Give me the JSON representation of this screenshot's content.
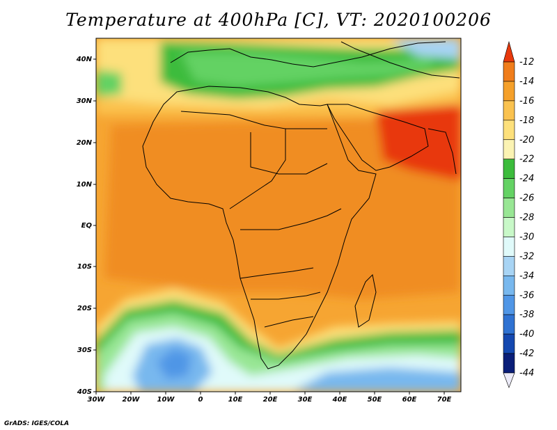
{
  "title": "Temperature at 400hPa [C], VT: 2020100206",
  "credit": "GrADS: IGES/COLA",
  "map": {
    "lat_labels": [
      "40N",
      "30N",
      "20N",
      "10N",
      "EQ",
      "10S",
      "20S",
      "30S",
      "40S"
    ],
    "lon_labels": [
      "30W",
      "20W",
      "10W",
      "0",
      "10E",
      "20E",
      "30E",
      "40E",
      "50E",
      "60E",
      "70E"
    ],
    "lat_range": [
      -40,
      45
    ],
    "lon_range": [
      -30,
      75
    ]
  },
  "colorbar": {
    "labels": [
      "-12",
      "-14",
      "-16",
      "-18",
      "-20",
      "-22",
      "-24",
      "-26",
      "-28",
      "-30",
      "-32",
      "-34",
      "-36",
      "-38",
      "-40",
      "-42",
      "-44"
    ],
    "colors": [
      "#e8390c",
      "#f07d1b",
      "#f5a02a",
      "#fac24f",
      "#fde07b",
      "#fbf3b3",
      "#3cbc3c",
      "#64d264",
      "#98e694",
      "#c8f8c8",
      "#e0fafa",
      "#a8d4f4",
      "#78b8ee",
      "#5096e6",
      "#2f72d2",
      "#1448b0",
      "#0a1e78",
      "#0c1680"
    ]
  }
}
